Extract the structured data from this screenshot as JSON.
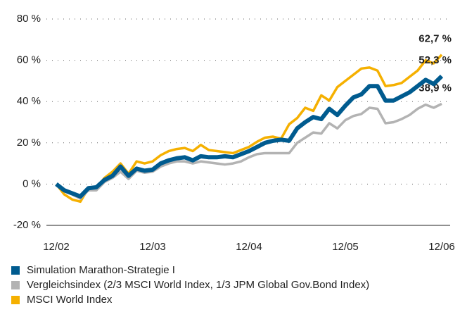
{
  "chart_data": {
    "type": "line",
    "categories": [
      "12/02",
      null,
      null,
      null,
      null,
      null,
      null,
      null,
      null,
      null,
      null,
      null,
      "12/03",
      null,
      null,
      null,
      null,
      null,
      null,
      null,
      null,
      null,
      null,
      null,
      "12/04",
      null,
      null,
      null,
      null,
      null,
      null,
      null,
      null,
      null,
      null,
      null,
      "12/05",
      null,
      null,
      null,
      null,
      null,
      null,
      null,
      null,
      null,
      null,
      null,
      "12/06"
    ],
    "series": [
      {
        "name": "MSCI World Index",
        "color": "#f5b000",
        "end_label": "62,7 %",
        "values": [
          0,
          -5,
          -7.5,
          -8.5,
          -2,
          -2,
          3,
          6,
          10,
          5,
          11,
          10,
          11,
          14,
          16,
          17,
          17.5,
          16,
          19,
          16.5,
          16,
          15.5,
          15,
          16.5,
          18,
          20.5,
          22.5,
          23,
          22,
          29,
          32,
          37,
          35.5,
          43,
          40.5,
          47,
          50,
          53,
          56,
          56.5,
          55,
          47.5,
          48,
          49,
          52,
          55,
          60,
          58.5,
          62.7
        ]
      },
      {
        "name": "Vergleichsindex (2/3 MSCI World Index, 1/3 JPM Global Gov.Bond Index)",
        "color": "#b3b3b3",
        "end_label": "38,9 %",
        "values": [
          0,
          -3.5,
          -5,
          -7,
          -3,
          -3,
          1,
          3,
          6,
          2.5,
          6.5,
          5.5,
          6,
          8.5,
          10,
          11,
          11,
          10,
          11,
          10.5,
          10,
          9.5,
          10,
          11,
          13,
          14.5,
          15,
          15,
          15,
          15,
          20,
          22.5,
          25,
          24.5,
          29.5,
          27,
          31,
          33,
          34,
          37,
          36.5,
          29.5,
          30,
          31.5,
          33.5,
          36.5,
          38.5,
          37,
          38.9
        ]
      },
      {
        "name": "Simulation Marathon-Strategie I",
        "color": "#005b8f",
        "end_label": "52,3 %",
        "values": [
          0,
          -3,
          -4.5,
          -6,
          -2,
          -1.5,
          2,
          4,
          8.5,
          4,
          7.5,
          6.5,
          7,
          10,
          11.5,
          12.5,
          13,
          11.5,
          13.5,
          13,
          13,
          13.5,
          13,
          14.5,
          16,
          18,
          20,
          21,
          21.5,
          21,
          27,
          30,
          32.5,
          31.5,
          36.5,
          33.5,
          38,
          42,
          43.5,
          47.5,
          47.5,
          40.5,
          40.5,
          42.5,
          44.5,
          47.5,
          50.5,
          48.5,
          52.3
        ]
      }
    ],
    "ylim": [
      -20,
      80
    ],
    "yticks": [
      {
        "value": -20,
        "label": "-20 %"
      },
      {
        "value": 0,
        "label": "0 %"
      },
      {
        "value": 20,
        "label": "20 %"
      },
      {
        "value": 40,
        "label": "40 %"
      },
      {
        "value": 60,
        "label": "60 %"
      },
      {
        "value": 80,
        "label": "80 %"
      }
    ],
    "grid": true
  }
}
